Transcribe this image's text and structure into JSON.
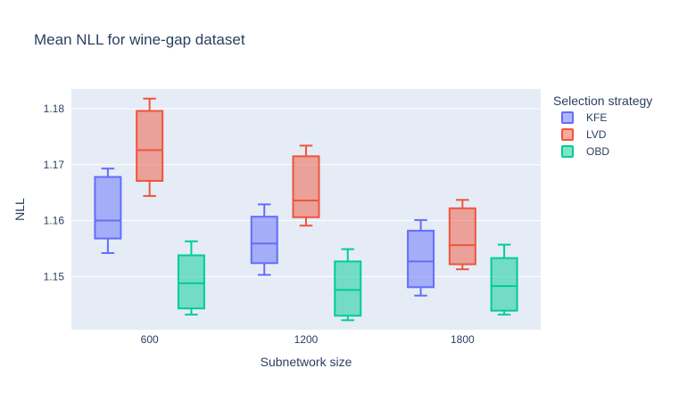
{
  "chart_data": {
    "type": "box",
    "title": "Mean NLL for wine-gap dataset",
    "xlabel": "Subnetwork size",
    "ylabel": "NLL",
    "categories": [
      "600",
      "1200",
      "1800"
    ],
    "ylim": [
      1.1405,
      1.1835
    ],
    "yticks": [
      1.15,
      1.16,
      1.17,
      1.18
    ],
    "ytick_labels": [
      "1.15",
      "1.16",
      "1.17",
      "1.18"
    ],
    "grid": true,
    "legend": {
      "title": "Selection strategy",
      "placement": "right"
    },
    "series": [
      {
        "name": "KFE",
        "color": "#636efa",
        "boxes": [
          {
            "min": 1.1542,
            "q1": 1.1568,
            "median": 1.16,
            "q3": 1.1678,
            "max": 1.1693
          },
          {
            "min": 1.1503,
            "q1": 1.1524,
            "median": 1.1559,
            "q3": 1.1607,
            "max": 1.1629
          },
          {
            "min": 1.1466,
            "q1": 1.1481,
            "median": 1.1527,
            "q3": 1.1582,
            "max": 1.1601
          }
        ]
      },
      {
        "name": "LVD",
        "color": "#ef553b",
        "boxes": [
          {
            "min": 1.1644,
            "q1": 1.1671,
            "median": 1.1726,
            "q3": 1.1796,
            "max": 1.1818
          },
          {
            "min": 1.1591,
            "q1": 1.1606,
            "median": 1.1636,
            "q3": 1.1715,
            "max": 1.1734
          },
          {
            "min": 1.1513,
            "q1": 1.1522,
            "median": 1.1556,
            "q3": 1.1622,
            "max": 1.1637
          }
        ]
      },
      {
        "name": "OBD",
        "color": "#00cc96",
        "boxes": [
          {
            "min": 1.1432,
            "q1": 1.1443,
            "median": 1.1488,
            "q3": 1.1538,
            "max": 1.1563
          },
          {
            "min": 1.1422,
            "q1": 1.143,
            "median": 1.1476,
            "q3": 1.1527,
            "max": 1.1549
          },
          {
            "min": 1.1432,
            "q1": 1.1439,
            "median": 1.1483,
            "q3": 1.1533,
            "max": 1.1557
          }
        ]
      }
    ]
  }
}
